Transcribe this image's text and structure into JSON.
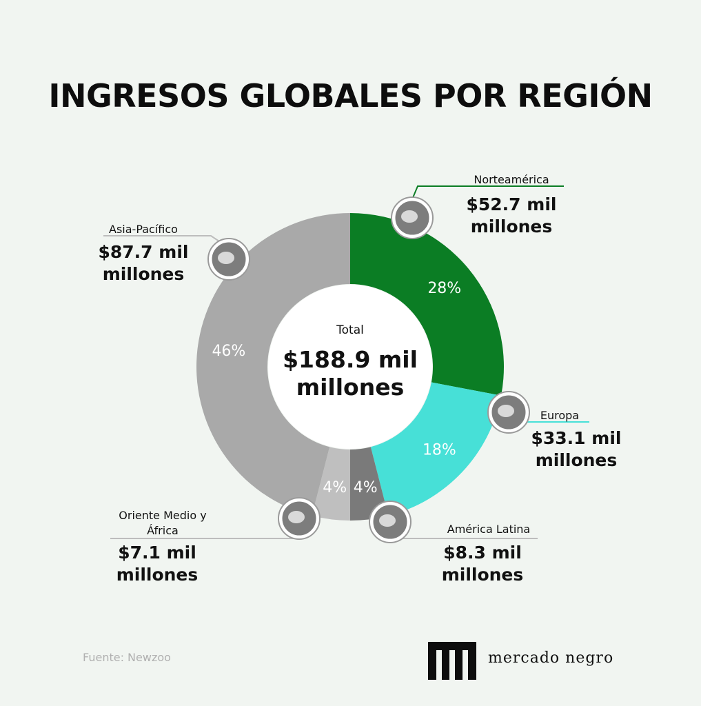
{
  "chart_data": {
    "type": "pie",
    "donut": true,
    "title": "INGRESOS GLOBALES POR REGIÓN",
    "categories": [
      "Norteamérica",
      "Europa",
      "América Latina",
      "Oriente Medio y África",
      "Asia-Pacífico"
    ],
    "values": [
      28,
      18,
      4,
      4,
      46
    ],
    "value_labels": [
      "28%",
      "18%",
      "4%",
      "4%",
      "46%"
    ],
    "amount_labels": [
      "$52.7 mil millones",
      "$33.1 mil millones",
      "$8.3 mil millones",
      "$7.1 mil millones",
      "$87.7 mil millones"
    ],
    "colors": [
      "#0b7d24",
      "#47e0d7",
      "#7a7a7a",
      "#bfbfbf",
      "#a9a9a9"
    ],
    "center_label": "Total",
    "center_value_label": "$188.9 mil millones",
    "source": "Fuente: Newzoo",
    "brand": "mercado negro"
  }
}
